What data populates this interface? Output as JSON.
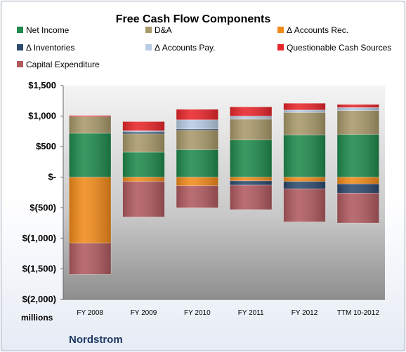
{
  "chart_data": {
    "type": "bar",
    "stacked": true,
    "title": "Free Cash Flow Components",
    "unit_label": "millions",
    "company": "Nordstrom",
    "categories": [
      "FY 2008",
      "FY 2009",
      "FY 2010",
      "FY 2011",
      "FY 2012",
      "TTM 10-2012"
    ],
    "ylim": [
      -2000,
      1500
    ],
    "yticks": [
      1500,
      1000,
      500,
      0,
      -500,
      -1000,
      -1500,
      -2000
    ],
    "ytick_labels": [
      "$1,500",
      "$1,000",
      "$500",
      "$-",
      "$(500)",
      "$(1,000)",
      "$(1,500)",
      "$(2,000)"
    ],
    "legend_position": "top",
    "grid": false,
    "series": [
      {
        "name": "Net Income",
        "color": "#1f8a4c",
        "values": [
          720,
          410,
          450,
          610,
          690,
          700
        ]
      },
      {
        "name": "D&A",
        "color": "#a8996a",
        "values": [
          270,
          300,
          320,
          340,
          370,
          390
        ]
      },
      {
        "name": "Δ Accounts Rec.",
        "color": "#f28a1a",
        "values": [
          -1080,
          -70,
          -140,
          -60,
          -70,
          -110
        ]
      },
      {
        "name": "Δ Inventories",
        "color": "#2c4a6e",
        "values": [
          0,
          30,
          20,
          -70,
          -120,
          -150
        ]
      },
      {
        "name": "Δ Accounts Pay.",
        "color": "#b8cce4",
        "values": [
          0,
          20,
          150,
          50,
          40,
          50
        ]
      },
      {
        "name": "Questionable Cash Sources",
        "color": "#e8262b",
        "values": [
          20,
          150,
          170,
          150,
          110,
          50
        ]
      },
      {
        "name": "Capital Expenditure",
        "color": "#b05a5f",
        "values": [
          -510,
          -580,
          -360,
          -400,
          -540,
          -490
        ]
      }
    ]
  }
}
